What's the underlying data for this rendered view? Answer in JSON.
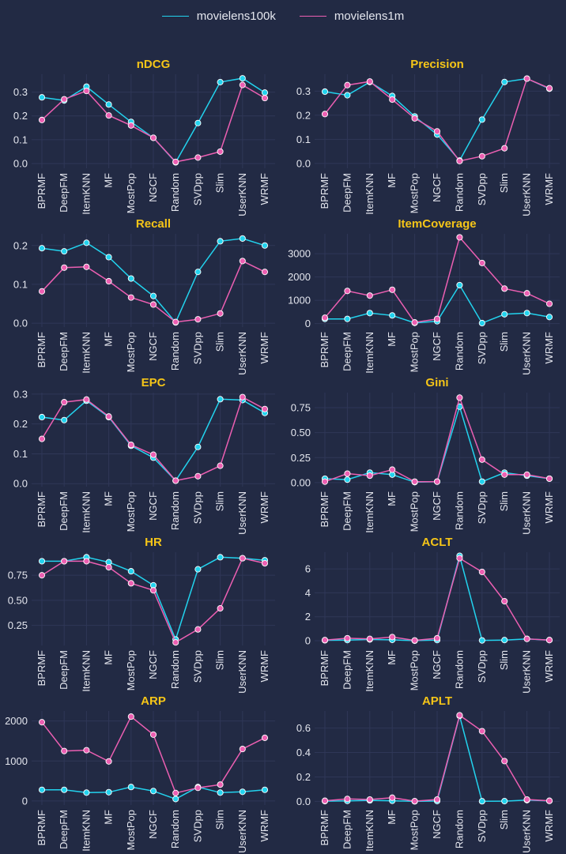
{
  "legend": {
    "items": [
      {
        "label": "movielens100k",
        "color": "#22d3ee"
      },
      {
        "label": "movielens1m",
        "color": "#ec5fb2"
      }
    ]
  },
  "colors": {
    "background": "#222a44",
    "grid": "#2f3757",
    "title": "#f5c518",
    "text": "#e4e6ee"
  },
  "chart_data": [
    {
      "type": "line",
      "title": "nDCG",
      "categories": [
        "BPRMF",
        "DeepFM",
        "ItemKNN",
        "MF",
        "MostPop",
        "NGCF",
        "Random",
        "SVDpp",
        "Slim",
        "UserKNN",
        "WRMF"
      ],
      "ylim": [
        -0.02,
        0.375
      ],
      "yticks": [
        0.0,
        0.1,
        0.2,
        0.3
      ],
      "tick_labels": [
        "0.0",
        "0.1",
        "0.2",
        "0.3"
      ],
      "series": [
        {
          "name": "movielens100k",
          "values": [
            0.278,
            0.265,
            0.323,
            0.248,
            0.175,
            0.108,
            0.005,
            0.17,
            0.342,
            0.358,
            0.298
          ]
        },
        {
          "name": "movielens1m",
          "values": [
            0.183,
            0.27,
            0.305,
            0.202,
            0.16,
            0.108,
            0.007,
            0.025,
            0.05,
            0.33,
            0.275
          ]
        }
      ]
    },
    {
      "type": "line",
      "title": "Precision",
      "categories": [
        "BPRMF",
        "DeepFM",
        "ItemKNN",
        "MF",
        "MostPop",
        "NGCF",
        "Random",
        "SVDpp",
        "Slim",
        "UserKNN",
        "WRMF"
      ],
      "ylim": [
        -0.02,
        0.37
      ],
      "yticks": [
        0.0,
        0.1,
        0.2,
        0.3
      ],
      "tick_labels": [
        "0.0",
        "0.1",
        "0.2",
        "0.3"
      ],
      "series": [
        {
          "name": "movielens100k",
          "values": [
            0.298,
            0.283,
            0.338,
            0.28,
            0.195,
            0.12,
            0.012,
            0.182,
            0.338,
            0.352,
            0.31
          ]
        },
        {
          "name": "movielens1m",
          "values": [
            0.205,
            0.325,
            0.34,
            0.265,
            0.187,
            0.133,
            0.01,
            0.03,
            0.063,
            0.352,
            0.312
          ]
        }
      ]
    },
    {
      "type": "line",
      "title": "Recall",
      "categories": [
        "BPRMF",
        "DeepFM",
        "ItemKNN",
        "MF",
        "MostPop",
        "NGCF",
        "Random",
        "SVDpp",
        "Slim",
        "UserKNN",
        "WRMF"
      ],
      "ylim": [
        -0.01,
        0.23
      ],
      "yticks": [
        0.0,
        0.1,
        0.2
      ],
      "tick_labels": [
        "0.0",
        "0.1",
        "0.2"
      ],
      "series": [
        {
          "name": "movielens100k",
          "values": [
            0.193,
            0.185,
            0.207,
            0.17,
            0.115,
            0.07,
            0.002,
            0.132,
            0.211,
            0.218,
            0.2
          ]
        },
        {
          "name": "movielens1m",
          "values": [
            0.082,
            0.143,
            0.145,
            0.108,
            0.066,
            0.048,
            0.003,
            0.01,
            0.025,
            0.16,
            0.132
          ]
        }
      ]
    },
    {
      "type": "line",
      "title": "ItemCoverage",
      "categories": [
        "BPRMF",
        "DeepFM",
        "ItemKNN",
        "MF",
        "MostPop",
        "NGCF",
        "Random",
        "SVDpp",
        "Slim",
        "UserKNN",
        "WRMF"
      ],
      "ylim": [
        -150,
        3850
      ],
      "yticks": [
        0,
        1000,
        2000,
        3000
      ],
      "tick_labels": [
        "0",
        "1000",
        "2000",
        "3000"
      ],
      "series": [
        {
          "name": "movielens100k",
          "values": [
            200,
            200,
            450,
            350,
            30,
            100,
            1650,
            20,
            400,
            450,
            280
          ]
        },
        {
          "name": "movielens1m",
          "values": [
            250,
            1400,
            1200,
            1450,
            50,
            200,
            3700,
            2600,
            1500,
            1300,
            850
          ]
        }
      ]
    },
    {
      "type": "line",
      "title": "EPC",
      "categories": [
        "BPRMF",
        "DeepFM",
        "ItemKNN",
        "MF",
        "MostPop",
        "NGCF",
        "Random",
        "SVDpp",
        "Slim",
        "UserKNN",
        "WRMF"
      ],
      "ylim": [
        -0.01,
        0.305
      ],
      "yticks": [
        0.0,
        0.1,
        0.2,
        0.3
      ],
      "tick_labels": [
        "0.0",
        "0.1",
        "0.2",
        "0.3"
      ],
      "series": [
        {
          "name": "movielens100k",
          "values": [
            0.223,
            0.213,
            0.278,
            0.223,
            0.127,
            0.087,
            0.01,
            0.123,
            0.283,
            0.28,
            0.237
          ]
        },
        {
          "name": "movielens1m",
          "values": [
            0.15,
            0.273,
            0.282,
            0.225,
            0.13,
            0.097,
            0.01,
            0.025,
            0.06,
            0.29,
            0.25
          ]
        }
      ]
    },
    {
      "type": "line",
      "title": "Gini",
      "categories": [
        "BPRMF",
        "DeepFM",
        "ItemKNN",
        "MF",
        "MostPop",
        "NGCF",
        "Random",
        "SVDpp",
        "Slim",
        "UserKNN",
        "WRMF"
      ],
      "ylim": [
        -0.04,
        0.9
      ],
      "yticks": [
        0.0,
        0.25,
        0.5,
        0.75
      ],
      "tick_labels": [
        "0.00",
        "0.25",
        "0.50",
        "0.75"
      ],
      "series": [
        {
          "name": "movielens100k",
          "values": [
            0.04,
            0.03,
            0.1,
            0.08,
            0.005,
            0.01,
            0.76,
            0.01,
            0.1,
            0.07,
            0.04
          ]
        },
        {
          "name": "movielens1m",
          "values": [
            0.01,
            0.09,
            0.07,
            0.13,
            0.01,
            0.01,
            0.85,
            0.23,
            0.08,
            0.08,
            0.04
          ]
        }
      ]
    },
    {
      "type": "line",
      "title": "HR",
      "categories": [
        "BPRMF",
        "DeepFM",
        "ItemKNN",
        "MF",
        "MostPop",
        "NGCF",
        "Random",
        "SVDpp",
        "Slim",
        "UserKNN",
        "WRMF"
      ],
      "ylim": [
        0.05,
        0.98
      ],
      "yticks": [
        0.25,
        0.5,
        0.75
      ],
      "tick_labels": [
        "0.25",
        "0.50",
        "0.75"
      ],
      "series": [
        {
          "name": "movielens100k",
          "values": [
            0.89,
            0.89,
            0.93,
            0.88,
            0.79,
            0.65,
            0.11,
            0.81,
            0.93,
            0.92,
            0.9
          ]
        },
        {
          "name": "movielens1m",
          "values": [
            0.75,
            0.89,
            0.89,
            0.83,
            0.67,
            0.6,
            0.08,
            0.21,
            0.42,
            0.92,
            0.87
          ]
        }
      ]
    },
    {
      "type": "line",
      "title": "ACLT",
      "categories": [
        "BPRMF",
        "DeepFM",
        "ItemKNN",
        "MF",
        "MostPop",
        "NGCF",
        "Random",
        "SVDpp",
        "Slim",
        "UserKNN",
        "WRMF"
      ],
      "ylim": [
        -0.4,
        7.4
      ],
      "yticks": [
        0,
        2,
        4,
        6
      ],
      "tick_labels": [
        "0",
        "2",
        "4",
        "6"
      ],
      "series": [
        {
          "name": "movielens100k",
          "values": [
            0.03,
            0.05,
            0.1,
            0.07,
            0.0,
            0.05,
            7.1,
            0.02,
            0.05,
            0.15,
            0.05
          ]
        },
        {
          "name": "movielens1m",
          "values": [
            0.05,
            0.2,
            0.15,
            0.3,
            0.02,
            0.2,
            6.9,
            5.75,
            3.3,
            0.15,
            0.05
          ]
        }
      ]
    },
    {
      "type": "line",
      "title": "ARP",
      "categories": [
        "BPRMF",
        "DeepFM",
        "ItemKNN",
        "MF",
        "MostPop",
        "NGCF",
        "Random",
        "SVDpp",
        "Slim",
        "UserKNN",
        "WRMF"
      ],
      "ylim": [
        -100,
        2250
      ],
      "yticks": [
        0,
        1000,
        2000
      ],
      "tick_labels": [
        "0",
        "1000",
        "2000"
      ],
      "series": [
        {
          "name": "movielens100k",
          "values": [
            280,
            280,
            210,
            220,
            350,
            250,
            50,
            350,
            210,
            230,
            280
          ]
        },
        {
          "name": "movielens1m",
          "values": [
            1970,
            1250,
            1270,
            990,
            2110,
            1660,
            200,
            330,
            410,
            1300,
            1580
          ]
        }
      ]
    },
    {
      "type": "line",
      "title": "APLT",
      "categories": [
        "BPRMF",
        "DeepFM",
        "ItemKNN",
        "MF",
        "MostPop",
        "NGCF",
        "Random",
        "SVDpp",
        "Slim",
        "UserKNN",
        "WRMF"
      ],
      "ylim": [
        -0.03,
        0.74
      ],
      "yticks": [
        0.0,
        0.2,
        0.4,
        0.6
      ],
      "tick_labels": [
        "0.0",
        "0.2",
        "0.4",
        "0.6"
      ],
      "series": [
        {
          "name": "movielens100k",
          "values": [
            0.002,
            0.004,
            0.008,
            0.005,
            0.0,
            0.003,
            0.7,
            0.001,
            0.002,
            0.01,
            0.004
          ]
        },
        {
          "name": "movielens1m",
          "values": [
            0.005,
            0.02,
            0.015,
            0.03,
            0.002,
            0.015,
            0.705,
            0.575,
            0.33,
            0.015,
            0.005
          ]
        }
      ]
    }
  ]
}
